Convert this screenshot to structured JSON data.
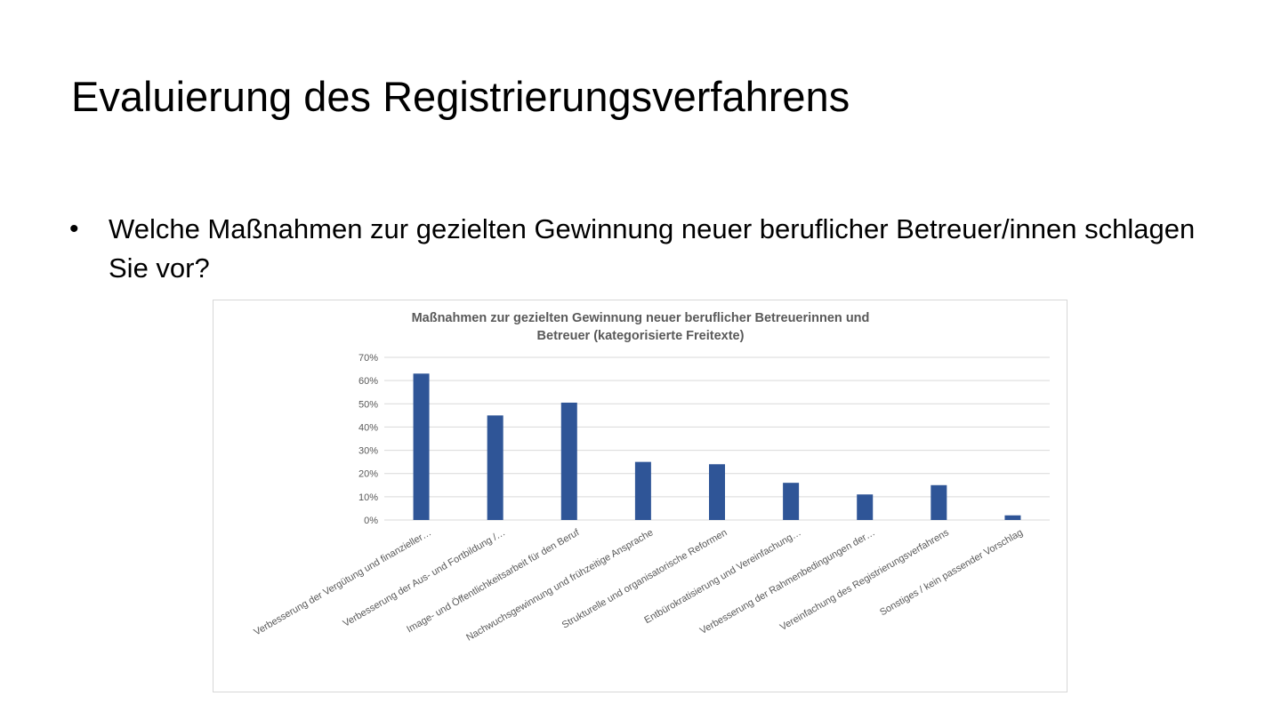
{
  "slide": {
    "title": "Evaluierung des Registrierungsverfahrens",
    "bullet": "•",
    "question": "Welche Maßnahmen zur gezielten Gewinnung neuer beruflicher Betreuer/innen schlagen Sie vor?"
  },
  "colors": {
    "bar": "#2F5597",
    "grid": "#d9d9d9",
    "axis_text": "#595959"
  },
  "chart_data": {
    "type": "bar",
    "title_lines": [
      "Maßnahmen zur gezielten Gewinnung neuer beruflicher Betreuerinnen und",
      "Betreuer (kategorisierte Freitexte)"
    ],
    "categories": [
      "Verbesserung der Vergütung und finanzieller…",
      "Verbesserung der Aus- und Fortbildung /…",
      "Image- und Öffentlichkeitsarbeit für den Beruf",
      "Nachwuchsgewinnung und frühzeitige Ansprache",
      "Strukturelle und organisatorische Reformen",
      "Entbürokratisierung und Vereinfachung…",
      "Verbesserung der Rahmenbedingungen der…",
      "Vereinfachung des Registrierungsverfahrens",
      "Sonstiges / kein passender Vorschlag"
    ],
    "values": [
      63,
      45,
      50.5,
      25,
      24,
      16,
      11,
      15,
      2
    ],
    "y_ticks": [
      "0%",
      "10%",
      "20%",
      "30%",
      "40%",
      "50%",
      "60%",
      "70%"
    ],
    "ylim": [
      0,
      70
    ],
    "grid": true,
    "legend": "none"
  }
}
